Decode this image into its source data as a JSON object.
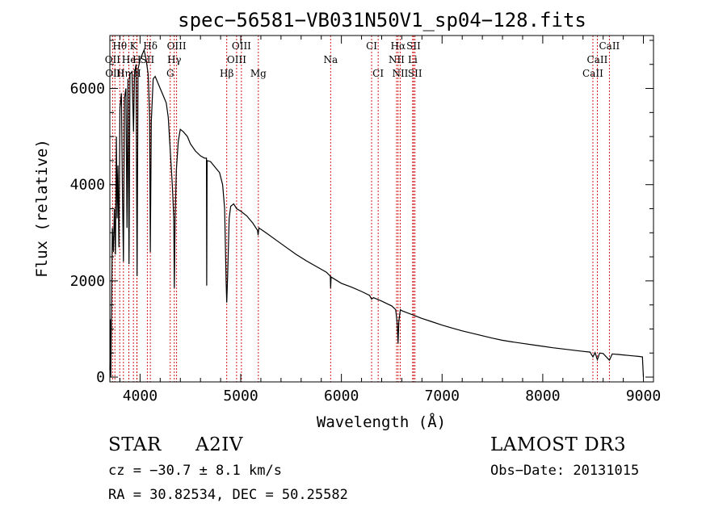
{
  "chart_data": {
    "type": "line",
    "title": "spec−56581−VB031N50V1_sp04−128.fits",
    "xlabel": "Wavelength (Å)",
    "ylabel": "Flux (relative)",
    "xlim": [
      3700,
      9100
    ],
    "ylim": [
      -100,
      7100
    ],
    "xticks": [
      4000,
      5000,
      6000,
      7000,
      8000,
      9000
    ],
    "yticks": [
      0,
      2000,
      4000,
      6000
    ],
    "series": [
      {
        "name": "flux",
        "points": [
          [
            3700,
            150
          ],
          [
            3705,
            1200
          ],
          [
            3710,
            0
          ],
          [
            3718,
            1600
          ],
          [
            3725,
            3100
          ],
          [
            3735,
            2600
          ],
          [
            3745,
            3500
          ],
          [
            3755,
            2550
          ],
          [
            3765,
            5000
          ],
          [
            3772,
            3300
          ],
          [
            3780,
            4400
          ],
          [
            3790,
            2700
          ],
          [
            3800,
            5600
          ],
          [
            3815,
            5900
          ],
          [
            3825,
            3800
          ],
          [
            3835,
            2400
          ],
          [
            3845,
            5800
          ],
          [
            3860,
            6000
          ],
          [
            3870,
            3100
          ],
          [
            3880,
            6200
          ],
          [
            3890,
            2350
          ],
          [
            3900,
            6300
          ],
          [
            3920,
            6350
          ],
          [
            3935,
            5100
          ],
          [
            3945,
            6300
          ],
          [
            3960,
            6500
          ],
          [
            3970,
            2100
          ],
          [
            3980,
            6400
          ],
          [
            4000,
            6600
          ],
          [
            4020,
            6700
          ],
          [
            4040,
            6800
          ],
          [
            4060,
            6600
          ],
          [
            4080,
            6300
          ],
          [
            4095,
            5400
          ],
          [
            4102,
            2600
          ],
          [
            4112,
            5300
          ],
          [
            4130,
            6200
          ],
          [
            4150,
            6250
          ],
          [
            4170,
            6150
          ],
          [
            4200,
            6000
          ],
          [
            4230,
            5850
          ],
          [
            4260,
            5700
          ],
          [
            4280,
            5400
          ],
          [
            4300,
            4700
          ],
          [
            4320,
            4000
          ],
          [
            4335,
            3300
          ],
          [
            4340,
            1850
          ],
          [
            4348,
            3300
          ],
          [
            4360,
            4300
          ],
          [
            4380,
            4900
          ],
          [
            4400,
            5150
          ],
          [
            4430,
            5100
          ],
          [
            4470,
            5000
          ],
          [
            4500,
            4850
          ],
          [
            4550,
            4700
          ],
          [
            4600,
            4600
          ],
          [
            4640,
            4550
          ],
          [
            4660,
            4550
          ],
          [
            4662,
            1900
          ],
          [
            4666,
            4500
          ],
          [
            4700,
            4480
          ],
          [
            4750,
            4350
          ],
          [
            4790,
            4250
          ],
          [
            4820,
            4000
          ],
          [
            4840,
            3500
          ],
          [
            4855,
            2000
          ],
          [
            4861,
            1550
          ],
          [
            4870,
            2100
          ],
          [
            4885,
            3300
          ],
          [
            4900,
            3550
          ],
          [
            4930,
            3600
          ],
          [
            4960,
            3500
          ],
          [
            5000,
            3450
          ],
          [
            5060,
            3350
          ],
          [
            5120,
            3200
          ],
          [
            5167,
            3050
          ],
          [
            5172,
            2950
          ],
          [
            5180,
            3100
          ],
          [
            5250,
            3000
          ],
          [
            5350,
            2850
          ],
          [
            5450,
            2700
          ],
          [
            5550,
            2550
          ],
          [
            5650,
            2420
          ],
          [
            5750,
            2300
          ],
          [
            5850,
            2180
          ],
          [
            5890,
            2100
          ],
          [
            5893,
            1850
          ],
          [
            5898,
            2080
          ],
          [
            6000,
            1950
          ],
          [
            6100,
            1870
          ],
          [
            6200,
            1780
          ],
          [
            6280,
            1700
          ],
          [
            6300,
            1620
          ],
          [
            6320,
            1650
          ],
          [
            6400,
            1580
          ],
          [
            6450,
            1530
          ],
          [
            6500,
            1480
          ],
          [
            6540,
            1400
          ],
          [
            6555,
            1100
          ],
          [
            6563,
            700
          ],
          [
            6570,
            1150
          ],
          [
            6585,
            1400
          ],
          [
            6600,
            1380
          ],
          [
            6700,
            1300
          ],
          [
            6800,
            1220
          ],
          [
            6900,
            1150
          ],
          [
            7000,
            1080
          ],
          [
            7100,
            1020
          ],
          [
            7200,
            960
          ],
          [
            7300,
            910
          ],
          [
            7400,
            860
          ],
          [
            7500,
            810
          ],
          [
            7600,
            765
          ],
          [
            7700,
            730
          ],
          [
            7800,
            700
          ],
          [
            7900,
            670
          ],
          [
            8000,
            640
          ],
          [
            8100,
            610
          ],
          [
            8200,
            585
          ],
          [
            8300,
            560
          ],
          [
            8400,
            535
          ],
          [
            8470,
            520
          ],
          [
            8498,
            420
          ],
          [
            8520,
            510
          ],
          [
            8542,
            360
          ],
          [
            8565,
            500
          ],
          [
            8600,
            490
          ],
          [
            8662,
            350
          ],
          [
            8690,
            480
          ],
          [
            8750,
            470
          ],
          [
            8800,
            460
          ],
          [
            8850,
            450
          ],
          [
            8900,
            440
          ],
          [
            8950,
            430
          ],
          [
            8990,
            420
          ],
          [
            9000,
            0
          ]
        ]
      }
    ],
    "spectral_lines": [
      {
        "label": "Hθ",
        "wavelength": 3798,
        "row": 1
      },
      {
        "label": "K",
        "wavelength": 3934,
        "row": 1
      },
      {
        "label": "Hδ",
        "wavelength": 4102,
        "row": 1
      },
      {
        "label": "OIII",
        "wavelength": 4363,
        "row": 1
      },
      {
        "label": "OIII",
        "wavelength": 5007,
        "row": 1
      },
      {
        "label": "CI",
        "wavelength": 6300,
        "row": 1
      },
      {
        "label": "Hα",
        "wavelength": 6563,
        "row": 1
      },
      {
        "label": "SII",
        "wavelength": 6717,
        "row": 1
      },
      {
        "label": "CaII",
        "wavelength": 8662,
        "row": 1
      },
      {
        "label": "OII",
        "wavelength": 3727,
        "row": 2
      },
      {
        "label": "He",
        "wavelength": 3889,
        "row": 2
      },
      {
        "label": "H",
        "wavelength": 3968,
        "row": 2
      },
      {
        "label": "SII",
        "wavelength": 4072,
        "row": 2
      },
      {
        "label": "Hγ",
        "wavelength": 4340,
        "row": 2
      },
      {
        "label": "OIII",
        "wavelength": 4959,
        "row": 2
      },
      {
        "label": "Na",
        "wavelength": 5893,
        "row": 2
      },
      {
        "label": "NII",
        "wavelength": 6548,
        "row": 2
      },
      {
        "label": "Li",
        "wavelength": 6708,
        "row": 2
      },
      {
        "label": "CaII",
        "wavelength": 8542,
        "row": 2
      },
      {
        "label": "OIII",
        "wavelength": 3750,
        "row": 3
      },
      {
        "label": "Hη",
        "wavelength": 3835,
        "row": 3
      },
      {
        "label": "H",
        "wavelength": 3970,
        "row": 3
      },
      {
        "label": "G",
        "wavelength": 4300,
        "row": 3
      },
      {
        "label": "Hβ",
        "wavelength": 4861,
        "row": 3
      },
      {
        "label": "Mg",
        "wavelength": 5175,
        "row": 3
      },
      {
        "label": "CI",
        "wavelength": 6365,
        "row": 3
      },
      {
        "label": "NII",
        "wavelength": 6584,
        "row": 3
      },
      {
        "label": "SII",
        "wavelength": 6731,
        "row": 3
      },
      {
        "label": "CaII",
        "wavelength": 8498,
        "row": 3
      }
    ]
  },
  "info": {
    "object_class": "STAR",
    "subclass": "A2IV",
    "survey": "LAMOST DR3",
    "redshift": "cz = −30.7 ± 8.1 km/s",
    "obs_date": "Obs−Date: 20131015",
    "coords": "RA =  30.82534, DEC =  50.25582"
  }
}
